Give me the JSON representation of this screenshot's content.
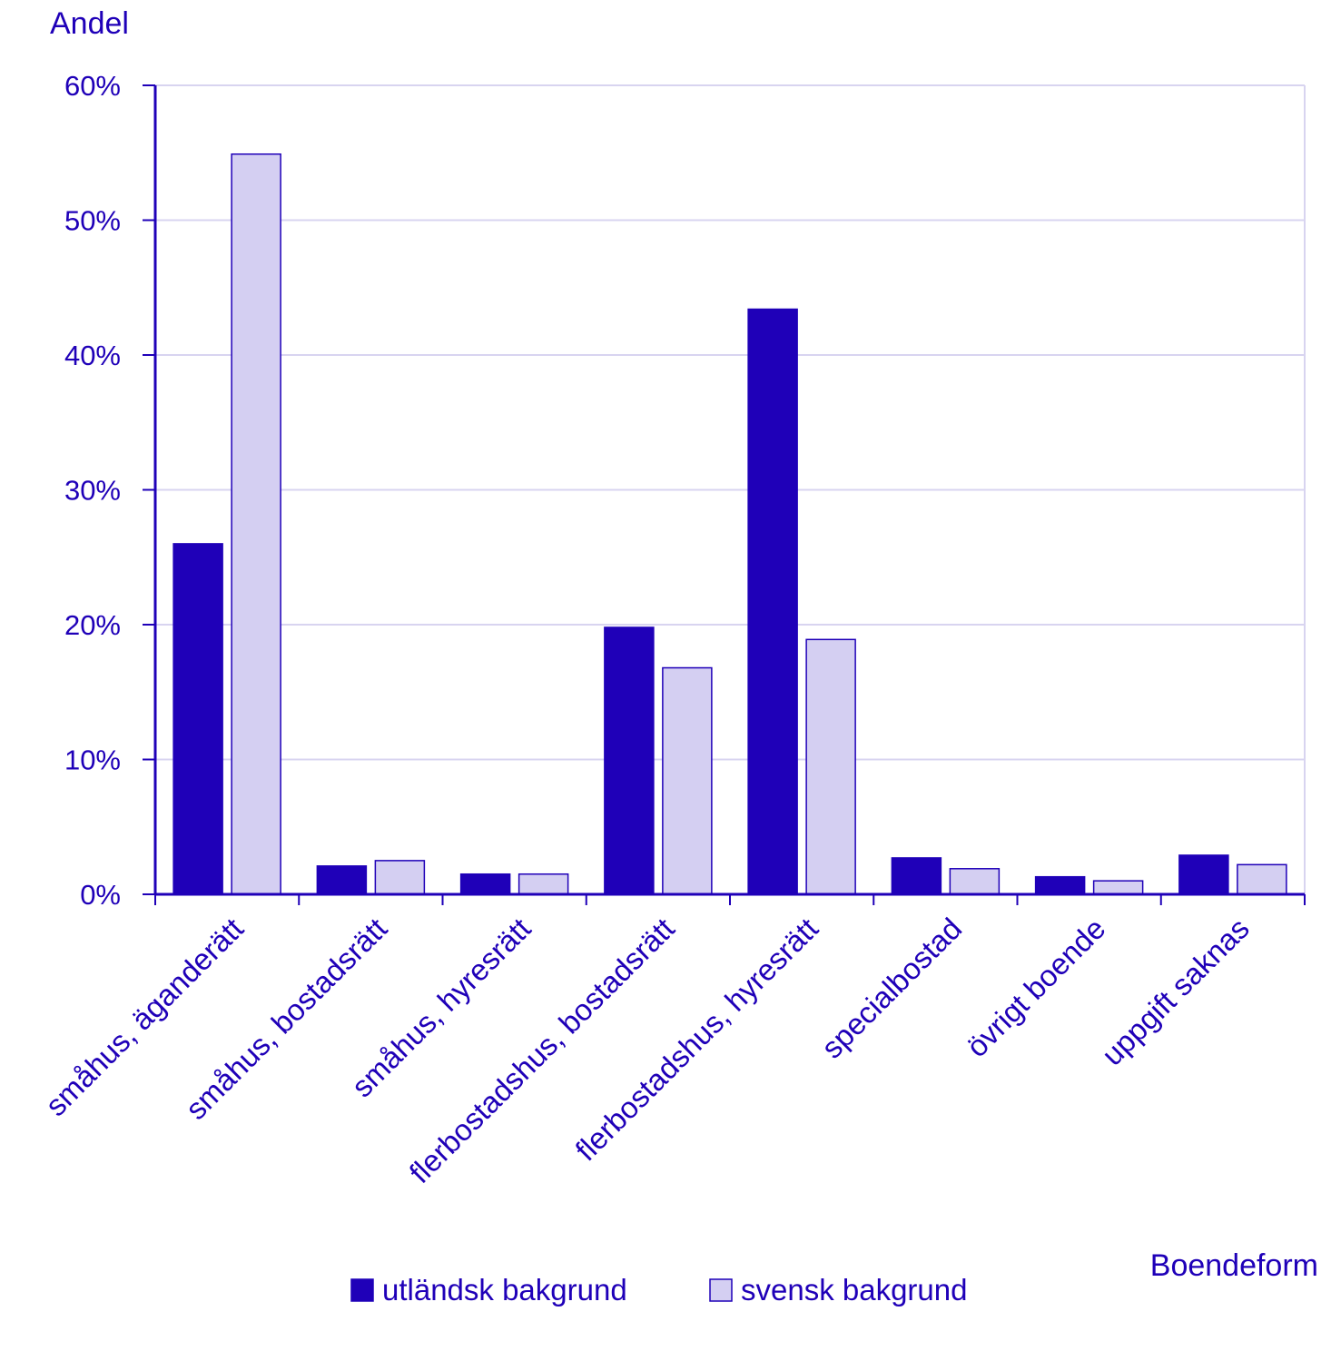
{
  "colors": {
    "text": "#1f00b8",
    "axis": "#1f00b8",
    "grid": "#d8d4f0",
    "series_dark": "#1f00b8",
    "series_light": "#d4cff2"
  },
  "chart_data": {
    "type": "bar",
    "ylabel": "Andel",
    "xlabel": "Boendeform",
    "ylim": [
      0,
      60
    ],
    "yticks": [
      0,
      10,
      20,
      30,
      40,
      50,
      60
    ],
    "ytick_labels": [
      "0%",
      "10%",
      "20%",
      "30%",
      "40%",
      "50%",
      "60%"
    ],
    "grid": true,
    "legend_position": "bottom",
    "categories": [
      "småhus, äganderätt",
      "småhus, bostadsrätt",
      "småhus, hyresrätt",
      "flerbostadshus, bostadsrätt",
      "flerbostadshus, hyresrätt",
      "specialbostad",
      "övrigt boende",
      "uppgift saknas"
    ],
    "series": [
      {
        "name": "utländsk bakgrund",
        "color": "#1f00b8",
        "values": [
          26.0,
          2.1,
          1.5,
          19.8,
          43.4,
          2.7,
          1.3,
          2.9
        ]
      },
      {
        "name": "svensk bakgrund",
        "color": "#d4cff2",
        "values": [
          54.9,
          2.5,
          1.5,
          16.8,
          18.9,
          1.9,
          1.0,
          2.2
        ]
      }
    ]
  }
}
